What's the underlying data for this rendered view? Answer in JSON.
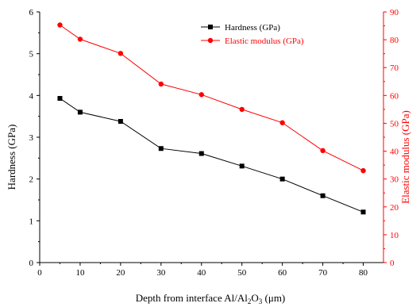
{
  "colors": {
    "hardness": "#000000",
    "modulus": "#ff0000",
    "axis_left": "#000000",
    "axis_right": "#ff0000",
    "background": "#ffffff"
  },
  "chart_data": {
    "type": "line",
    "title": "",
    "xlabel_parts": [
      "Depth from interface Al/Al",
      "2",
      "O",
      "3",
      " (μm)"
    ],
    "ylabel_left": "Hardness (GPa)",
    "ylabel_right": "Elastic modulus (GPa)",
    "xlim": [
      0,
      85
    ],
    "x_ticks": [
      0,
      10,
      20,
      30,
      40,
      50,
      60,
      70,
      80
    ],
    "ylim_left": [
      0,
      6
    ],
    "y_ticks_left": [
      0,
      1,
      2,
      3,
      4,
      5,
      6
    ],
    "ylim_right": [
      0,
      90
    ],
    "y_ticks_right": [
      0,
      10,
      20,
      30,
      40,
      50,
      60,
      70,
      80,
      90
    ],
    "grid": false,
    "legend_position": "top-right",
    "x": [
      5,
      10,
      20,
      30,
      40,
      50,
      60,
      70,
      80
    ],
    "series": [
      {
        "name": "Hardness (GPa)",
        "axis": "left",
        "marker": "square",
        "color": "#000000",
        "values": [
          3.93,
          3.6,
          3.38,
          2.73,
          2.61,
          2.31,
          2.0,
          1.6,
          1.21
        ]
      },
      {
        "name": "Elastic modulus (GPa)",
        "axis": "right",
        "marker": "circle",
        "color": "#ff0000",
        "values": [
          85.3,
          80.2,
          75.1,
          64.1,
          60.3,
          55.0,
          50.2,
          40.2,
          33.0
        ]
      }
    ]
  }
}
